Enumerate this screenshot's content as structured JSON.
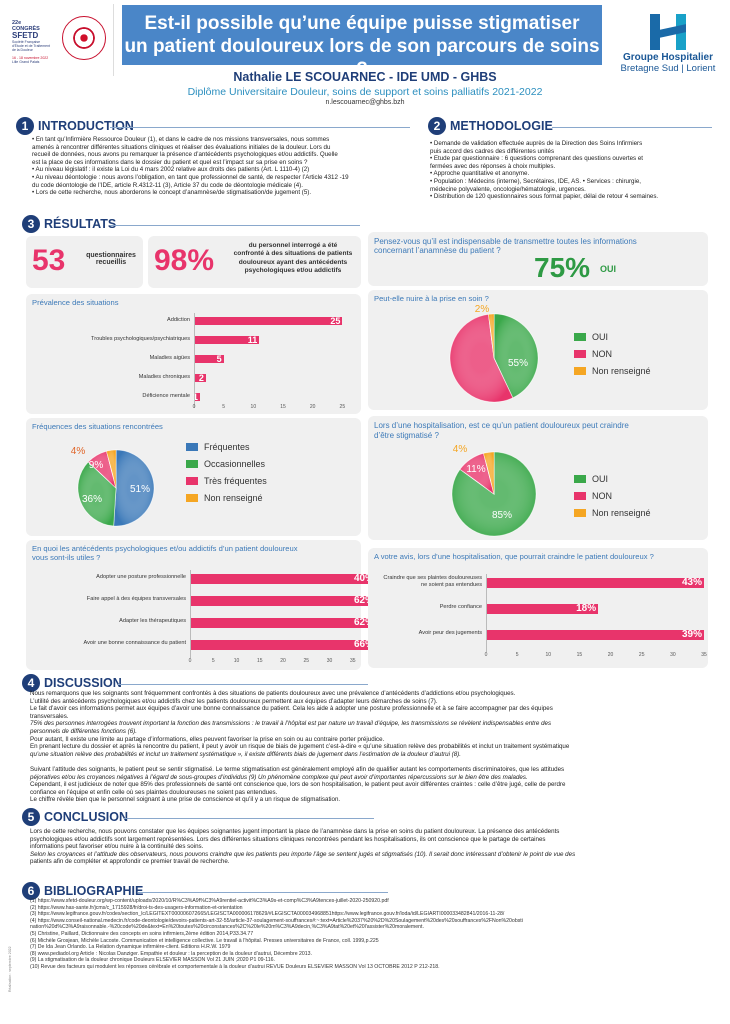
{
  "header": {
    "left_logo_text": [
      "22e",
      "CONGRÈS",
      "SFETD",
      "Société Française",
      "d'Étude et de Traitement",
      "de la Douleur",
      "16 - 18 novembre 2022",
      "Lille Grand Palais"
    ],
    "title_line1": "Est-il possible qu’une équipe puisse stigmatiser",
    "title_line2": "un patient douloureux lors de son parcours de soins ?",
    "brand_line1": "Groupe Hospitalier",
    "brand_line2": "Bretagne Sud | Lorient",
    "author": "Nathalie LE SCOUARNEC - IDE UMD - GHBS",
    "diploma": "Diplôme Universitaire Douleur, soins de support et soins palliatifs 2021-2022",
    "email": "n.lescouarnec@ghbs.bzh"
  },
  "sections": {
    "intro": {
      "num": "1",
      "title": "INTRODUCTION"
    },
    "method": {
      "num": "2",
      "title": "METHODOLOGIE"
    },
    "results": {
      "num": "3",
      "title": "RÉSULTATS"
    },
    "discussion": {
      "num": "4",
      "title": "DISCUSSION"
    },
    "conclusion": {
      "num": "5",
      "title": "CONCLUSION"
    },
    "biblio": {
      "num": "6",
      "title": "BIBLIOGRAPHIE"
    }
  },
  "intro_lines": [
    "• En tant qu’Infirmière Ressource Douleur (1), et dans le cadre de nos missions transversales, nous sommes",
    "amenés à rencontrer différentes situations cliniques et réaliser des évaluations initiales de la douleur. Lors du",
    "recueil de données, nous avons pu remarquer la présence d’antécédents psychologiques et/ou addictifs. Quelle",
    "est la place de ces informations dans le dossier du patient et quel est l’impact sur sa prise en soins ?",
    "• Au niveau législatif : il existe la Loi du 4 mars 2002 relative aux droits des patients (Art. L 1110-4) (2)",
    "• Au niveau déontologie : nous avons l’obligation, en tant que professionnel de santé, de respecter l’Article 4312 -19",
    "du code déontologie de l’IDE, article R.4312-11 (3), Article 37 du code de déontologie médicale (4).",
    "• Lors de cette recherche, nous aborderons le concept d’anamnèse/de stigmatisation/de jugement (5)."
  ],
  "method_lines": [
    "• Demande de validation effectuée auprès de la Direction des Soins Infirmiers",
    "puis accord des cadres des différentes unités",
    "• Etude par questionnaire : 6 questions comprenant des questions ouvertes et",
    "fermées avec des réponses à choix multiples.",
    "• Approche quantitative et anonyme.",
    "• Population : Médecins (interne), Secrétaires, IDE, AS.  • Services : chirurgie,",
    "médecine polyvalente, oncologie/hématologie, urgences.",
    "• Distribution de 120 questionnaires sous format papier, délai de retour 4 semaines."
  ],
  "stats": {
    "count_value": "53",
    "count_label_1": "questionnaires",
    "count_label_2": "recueillis",
    "pct_value": "98%",
    "pct_label_1": "du personnel interrogé a été",
    "pct_label_2": "confronté à des situations de patients",
    "pct_label_3": "douloureux ayant des antécédents",
    "pct_label_4": "psychologiques et/ou addictifs"
  },
  "transmit": {
    "question_1": "Pensez-vous qu’il est indispensable de transmettre toutes les informations",
    "question_2": "concernant l’anamnèse du patient ?",
    "value": "75%",
    "unit": "OUI"
  },
  "chart_data": [
    {
      "type": "bar",
      "title": "Prévalence des situations",
      "categories": [
        "Addiction",
        "Troubles psychologiques/psychiatriques",
        "Maladies aigües",
        "Maladies chroniques",
        "Déficience mentale"
      ],
      "values": [
        25,
        11,
        5,
        2,
        1
      ],
      "xlim": [
        0,
        30
      ],
      "ticks": [
        "0",
        "5",
        "10",
        "15",
        "20",
        "25",
        "30"
      ]
    },
    {
      "type": "pie",
      "title": "Fréquences des situations rencontrées",
      "labels": [
        "Fréquentes",
        "Occasionnelles",
        "Très fréquentes",
        "Non renseigné"
      ],
      "values": [
        51,
        36,
        9,
        4
      ],
      "value_labels": [
        "51%",
        "36%",
        "9%",
        "4%"
      ],
      "colors": [
        "#3a78b8",
        "#3aa84a",
        "#e8346b",
        "#f5a623"
      ]
    },
    {
      "type": "bar",
      "title": "En quoi les antécédents psychologiques et/ou addictifs d’un patient douloureux vous sont-ils utiles ?",
      "title_line1": "En quoi les antécédents psychologiques et/ou addictifs d’un patient douloureux",
      "title_line2": "vous sont-ils utiles ?",
      "categories": [
        "Adopter une posture professionnelle",
        "Faire appel à des équipes transversales",
        "Adapter les thérapeutiques",
        "Avoir une bonne connaissance du patient"
      ],
      "values": [
        40,
        62,
        62,
        66
      ],
      "value_labels": [
        "40%",
        "62%",
        "62%",
        "66%"
      ],
      "xlim": [
        0,
        40
      ],
      "ticks": [
        "0",
        "5",
        "10",
        "15",
        "20",
        "25",
        "30",
        "35",
        "40"
      ]
    },
    {
      "type": "pie",
      "title": "Peut-elle nuire à la prise en soin ?",
      "labels": [
        "OUI",
        "NON",
        "Non renseigné"
      ],
      "values": [
        43,
        55,
        2
      ],
      "value_labels": [
        "43%",
        "55%",
        "2%"
      ],
      "colors": [
        "#3aa84a",
        "#e8346b",
        "#f5a623"
      ]
    },
    {
      "type": "pie",
      "title": "Lors d’une hospitalisation, est ce qu’un patient douloureux peut craindre d’être stigmatisé ?",
      "title_line1": "Lors d’une hospitalisation, est ce qu’un patient douloureux peut craindre",
      "title_line2": "d’être stigmatisé ?",
      "labels": [
        "OUI",
        "NON",
        "Non renseigné"
      ],
      "values": [
        85,
        11,
        4
      ],
      "value_labels": [
        "85%",
        "11%",
        "4%"
      ],
      "colors": [
        "#3aa84a",
        "#e8346b",
        "#f5a623"
      ]
    },
    {
      "type": "bar",
      "title": "A votre avis, lors d’une hospitalisation, que pourrait craindre le patient douloureux ?",
      "categories": [
        "Craindre que ses plaintes douloureuses ne soient pas entendues",
        "Perdre confiance",
        "Avoir peur des jugements"
      ],
      "category_lines": [
        [
          "Craindre que ses plaintes douloureuses",
          "ne soient pas entendues"
        ],
        [
          "Perdre confiance"
        ],
        [
          "Avoir peur des jugements"
        ]
      ],
      "values": [
        43,
        18,
        39
      ],
      "value_labels": [
        "43%",
        "18%",
        "39%"
      ],
      "xlim": [
        0,
        35
      ],
      "ticks": [
        "0",
        "5",
        "10",
        "15",
        "20",
        "25",
        "30",
        "35"
      ]
    }
  ],
  "discussion_lines": [
    "Nous remarquons que les soignants sont fréquemment confrontés à des situations de patients douloureux avec une prévalence d’antécédents d’addictions et/ou psychologiques.",
    "L’utilité des antécédents psychologiques et/ou addictifs chez les patients douloureux permettent aux équipes d’adapter leurs démarches de soins (7).",
    "Le fait d’avoir ces informations permet aux équipes d’avoir une bonne connaissance du patient. Cela les aide à adopter une posture professionnelle et à se faire accompagner par des équipes",
    "transversales.",
    "75% des personnes interrogées trouvent important la fonction des transmissions :  le travail à l’hôpital est par nature un travail d’équipe, les transmissions se révèlent indispensables entre des",
    "personnels de différentes fonctions (6).",
    "Pour autant, Il existe une limite au partage d’informations, elles peuvent favoriser la prise en soin ou au contraire porter préjudice.",
    "En prenant lecture du dossier et après la rencontre du patient, il peut y avoir un risque de biais de jugement c’est-à-dire « qu’une situation relève des probabilités et inclut un traitement systématique",
    "qu’une situation relève des probabilités et inclut un traitement systématique », il existe différents biais de jugement dans l’estimation de la douleur d’autrui (8).",
    "",
    "Suivant l’attitude des soignants, le patient peut se sentir stigmatisé. Le terme stigmatisation est généralement employé afin de qualifier autant les comportements discriminatoires, que les attitudes",
    "péjoratives et/ou les croyances négatives à l’égard de sous-groupes d’individus (9) Un phénomène complexe qui peut avoir d’importantes répercussions sur le bien être des malades.",
    "Cependant, il est judicieux de noter que 85% des professionnels de santé ont conscience que, lors de son hospitalisation, le patient peut avoir différentes craintes : celle d’être jugé, celle de perdre",
    "confiance en l’équipe et enfin celle où ses plaintes douloureuses ne soient pas entendues.",
    "Le chiffre révèle bien que le personnel soignant à une prise de conscience et qu’il y a un risque de stigmatisation."
  ],
  "conclusion_lines": [
    "Lors de cette recherche, nous pouvons constater que les équipes soignantes jugent important la place de l’anamnèse dans la prise en soins du patient douloureux. La présence des antécédents",
    "psychologiques et/ou addictifs sont largement représentées. Lors des différentes situations cliniques rencontrées pendant les hospitalisations, ils ont conscience que le partage de certaines",
    "informations peut favoriser et/ou nuire à la continuité des soins.",
    "Selon les croyances et l’attitude des observateurs, nous pouvons craindre que les patients peu importe l’âge se sentent jugés et stigmatisés (10). Il serait donc intéressant d’obtenir le point de vue des",
    "patients afin de compléter et approfondir ce premier travail de recherche."
  ],
  "biblio_lines": [
    "(1)  https://www.sfetd-douleur.org/wp-content/uploads/2020/10/R%C3%A9f%C3%A9rentiel-activit%C3%A9s-et-comp%C3%A9tences-juillet-2020-250920.pdf",
    "(2)  https://www.has-sante.fr/jcms/c_1715928/fr/droi-ts-des-usagers-information-et-orientation",
    "(3)  https://www.legifrance.gouv.fr/codes/section_lc/LEGITEXT000006072665/LEGISCTA000006178629/#LEGISCTA000034968851https://www.legifrance.gouv.fr/loda/id/LEGIARTI000033482841/2016-11-28/",
    "(4)  https://www.conseil-national.medecin.fr/code-deontologie/devoirs-patients-art-32-55/article-37-soulagement-souffrances#:~:text=Article%2037%20%2D%20Soulagement%20des%20souffrances%2FNon%20obsti",
    "      nation%20d%C3%A9raisonnable.-%20code%20de&text=En%20toutes%20circonstances%2C%20le%20m%C3%A9decin,%C3%A9tat%20et%20l'assister%20moralement.",
    "(5)  Christine, Paillard, Dictionnaire des concepts en soins infirmiers,2ème édition 2014,P33.34.77",
    "(6)  Michèle Grosjean, Michèle Lacoste. Communication et intelligence collective. Le travail à l’hôpital. Presses universitaires de France, coll. 1999,p.225",
    "(7)  De Ida Jean Orlando. La Relation dynamique infirmière-client. Editions H.R.W. 1979",
    "(8)  www.pediadol.org Article : Nicolas Danziger. Empathie et douleur : la perception de la douleur d’autrui, Décembre 2013.",
    "(9)  La stigmatisation de la douleur chronique Douleurs ELSEVIER MASSON Vol 21 JUIN ;2020 P1 09-116.",
    "(10) Revue des facteurs qui modulent les réponses cérébrale et comportementale à la douleur d’autrui REVUE Douleurs ELSEVIER MASSON Vol 13 OCTOBRE 2012 P 212-218."
  ],
  "side_note": "Réalisation : septembre 2022"
}
